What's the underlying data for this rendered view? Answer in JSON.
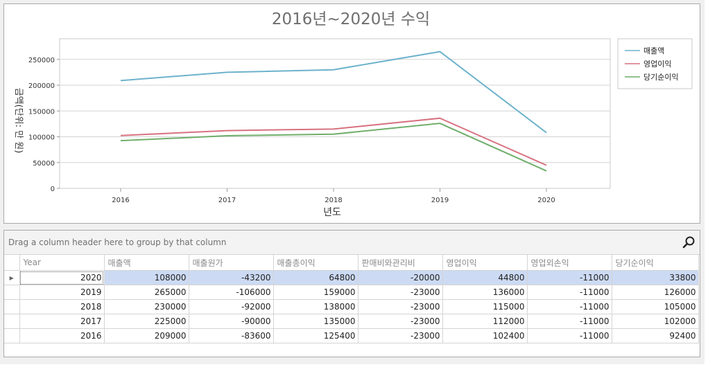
{
  "chart_data": {
    "type": "line",
    "title": "2016년~2020년 수익",
    "xlabel": "년도",
    "ylabel": "금액(단위: 만 원)",
    "x": [
      "2016",
      "2017",
      "2018",
      "2019",
      "2020"
    ],
    "ylim": [
      0,
      290000
    ],
    "yticks": [
      "0",
      "50000",
      "100000",
      "150000",
      "200000",
      "250000"
    ],
    "ytick_values": [
      0,
      50000,
      100000,
      150000,
      200000,
      250000
    ],
    "grid": true,
    "legend_placement": "top-right",
    "series": [
      {
        "name": "매출액",
        "color": "#6cb2cc",
        "values": [
          209000,
          225000,
          230000,
          265000,
          108000
        ]
      },
      {
        "name": "영업이익",
        "color": "#d7717f",
        "values": [
          102400,
          112000,
          115000,
          136000,
          44800
        ]
      },
      {
        "name": "당기순이익",
        "color": "#6fae6a",
        "values": [
          92400,
          102000,
          105000,
          126000,
          33800
        ]
      }
    ]
  },
  "grid": {
    "group_panel_text": "Drag a column header here to group by that column",
    "search_icon": "search-icon",
    "columns": [
      "Year",
      "매출액",
      "매출원가",
      "매출총이익",
      "판매비와관리비",
      "영업이익",
      "영업외손익",
      "당기순이익"
    ],
    "focused_row": 0,
    "rows": [
      [
        "2020",
        "108000",
        "-43200",
        "64800",
        "-20000",
        "44800",
        "-11000",
        "33800"
      ],
      [
        "2019",
        "265000",
        "-106000",
        "159000",
        "-23000",
        "136000",
        "-11000",
        "126000"
      ],
      [
        "2018",
        "230000",
        "-92000",
        "138000",
        "-23000",
        "115000",
        "-11000",
        "105000"
      ],
      [
        "2017",
        "225000",
        "-90000",
        "135000",
        "-23000",
        "112000",
        "-11000",
        "102000"
      ],
      [
        "2016",
        "209000",
        "-83600",
        "125400",
        "-23000",
        "102400",
        "-11000",
        "92400"
      ]
    ]
  }
}
